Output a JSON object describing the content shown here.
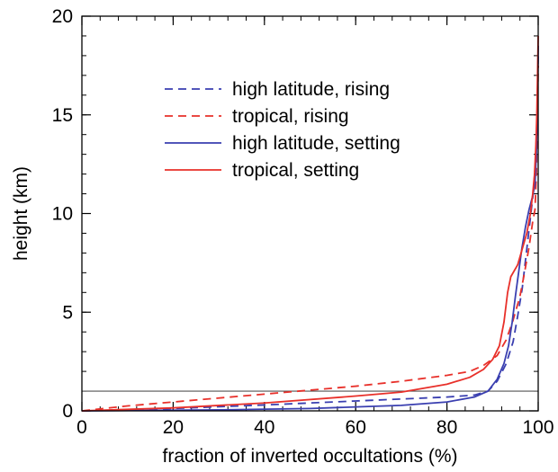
{
  "chart_data": {
    "type": "line",
    "xlabel": "fraction of inverted occultations (%)",
    "ylabel": "height (km)",
    "xlim": [
      0,
      100
    ],
    "ylim": [
      0,
      20
    ],
    "xticks": [
      0,
      20,
      40,
      60,
      80,
      100
    ],
    "yticks": [
      0,
      5,
      10,
      15,
      20
    ],
    "x_tick_labels": [
      "0",
      "20",
      "40",
      "60",
      "80",
      "100"
    ],
    "y_tick_labels": [
      "0",
      "5",
      "10",
      "15",
      "20"
    ],
    "minor_x_step": 4,
    "minor_y_step": 1,
    "grid": false,
    "legend_position": "upper-center",
    "reference_line": {
      "y": 1.0,
      "color": "#555555"
    },
    "series": [
      {
        "name": "high latitude, rising",
        "color": "#3a3fb0",
        "style": "dashed",
        "points": [
          [
            0,
            0
          ],
          [
            20,
            0.12
          ],
          [
            40,
            0.3
          ],
          [
            60,
            0.5
          ],
          [
            70,
            0.6
          ],
          [
            80,
            0.7
          ],
          [
            86,
            0.8
          ],
          [
            89,
            1.0
          ],
          [
            91,
            1.5
          ],
          [
            93,
            2.4
          ],
          [
            94.5,
            3.5
          ],
          [
            95.5,
            4.8
          ],
          [
            96.5,
            6.2
          ],
          [
            97.3,
            7.8
          ],
          [
            98,
            9.2
          ],
          [
            98.5,
            10.2
          ],
          [
            99,
            11.2
          ],
          [
            99.5,
            13
          ],
          [
            99.8,
            15.5
          ],
          [
            100,
            18
          ]
        ]
      },
      {
        "name": "tropical, rising",
        "color": "#e8302a",
        "style": "dashed",
        "points": [
          [
            0,
            0
          ],
          [
            10,
            0.25
          ],
          [
            20,
            0.45
          ],
          [
            40,
            0.85
          ],
          [
            60,
            1.25
          ],
          [
            70,
            1.5
          ],
          [
            80,
            1.8
          ],
          [
            85,
            2.0
          ],
          [
            88,
            2.3
          ],
          [
            91,
            2.8
          ],
          [
            93,
            3.6
          ],
          [
            94.5,
            4.6
          ],
          [
            96,
            5.8
          ],
          [
            97,
            7.0
          ],
          [
            98,
            8.3
          ],
          [
            98.8,
            9.6
          ],
          [
            99.3,
            10.2
          ],
          [
            99.6,
            12
          ],
          [
            99.8,
            14.5
          ],
          [
            100,
            17.5
          ]
        ]
      },
      {
        "name": "high latitude, setting",
        "color": "#3a3fb0",
        "style": "solid",
        "points": [
          [
            0,
            0
          ],
          [
            30,
            0.05
          ],
          [
            50,
            0.12
          ],
          [
            70,
            0.28
          ],
          [
            80,
            0.45
          ],
          [
            86,
            0.7
          ],
          [
            89,
            1.0
          ],
          [
            91,
            1.6
          ],
          [
            92.5,
            2.4
          ],
          [
            93.5,
            3.3
          ],
          [
            94.3,
            4.5
          ],
          [
            95,
            5.8
          ],
          [
            95.7,
            7.0
          ],
          [
            96.4,
            8.2
          ],
          [
            97.2,
            9.3
          ],
          [
            98,
            10.2
          ],
          [
            98.8,
            10.9
          ],
          [
            99.3,
            11.5
          ],
          [
            99.6,
            13
          ],
          [
            99.8,
            15
          ],
          [
            100,
            18.5
          ]
        ]
      },
      {
        "name": "tropical, setting",
        "color": "#e8302a",
        "style": "solid",
        "points": [
          [
            0,
            0
          ],
          [
            20,
            0.15
          ],
          [
            40,
            0.4
          ],
          [
            60,
            0.75
          ],
          [
            70,
            0.95
          ],
          [
            80,
            1.35
          ],
          [
            85,
            1.7
          ],
          [
            88,
            2.1
          ],
          [
            90,
            2.6
          ],
          [
            91.5,
            3.3
          ],
          [
            92.5,
            4.5
          ],
          [
            93.3,
            6.0
          ],
          [
            94,
            6.8
          ],
          [
            95.5,
            7.4
          ],
          [
            96.5,
            8.2
          ],
          [
            97.5,
            9.0
          ],
          [
            98.3,
            10.0
          ],
          [
            98.8,
            11.0
          ],
          [
            99.2,
            12.0
          ],
          [
            99.5,
            13.5
          ],
          [
            99.7,
            15
          ],
          [
            99.85,
            17
          ],
          [
            100,
            19
          ]
        ]
      }
    ]
  }
}
